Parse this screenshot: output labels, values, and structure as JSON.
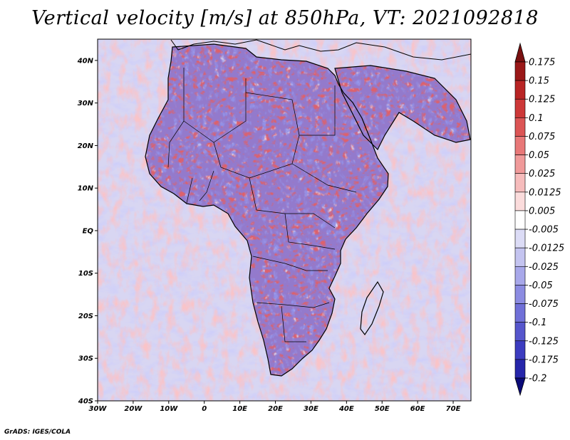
{
  "title": "Vertical velocity [m/s] at 850hPa, VT: 2021092818",
  "credit": "GrADS: IGES/COLA",
  "map": {
    "lat_labels": [
      "40N",
      "30N",
      "20N",
      "10N",
      "EQ",
      "10S",
      "20S",
      "30S",
      "40S"
    ],
    "lon_labels": [
      "30W",
      "20W",
      "10W",
      "0",
      "10E",
      "20E",
      "30E",
      "40E",
      "50E",
      "60E",
      "70E"
    ],
    "lat_range": [
      -40,
      45
    ],
    "lon_range": [
      -30,
      75
    ]
  },
  "colorbar": {
    "labels": [
      "0.175",
      "0.15",
      "0.125",
      "0.1",
      "0.075",
      "0.05",
      "0.025",
      "0.0125",
      "0.005",
      "-0.005",
      "-0.0125",
      "-0.025",
      "-0.05",
      "-0.075",
      "-0.1",
      "-0.125",
      "-0.175",
      "-0.2"
    ],
    "colors": [
      "#9a1818",
      "#b82424",
      "#cd3838",
      "#dc5555",
      "#e87878",
      "#f09a9a",
      "#f6bcbc",
      "#fbdcdc",
      "#ffffff",
      "#dcdcf6",
      "#c4c4f0",
      "#a8a8ea",
      "#8c8ce2",
      "#7070d8",
      "#5656cc",
      "#3c3cc0",
      "#2626aa",
      "#161690"
    ],
    "top_arrow_color": "#7a1010",
    "bottom_arrow_color": "#0a0a78"
  },
  "colors": {
    "ocean_base": "#d8d6f2",
    "coastline": "#000000"
  }
}
